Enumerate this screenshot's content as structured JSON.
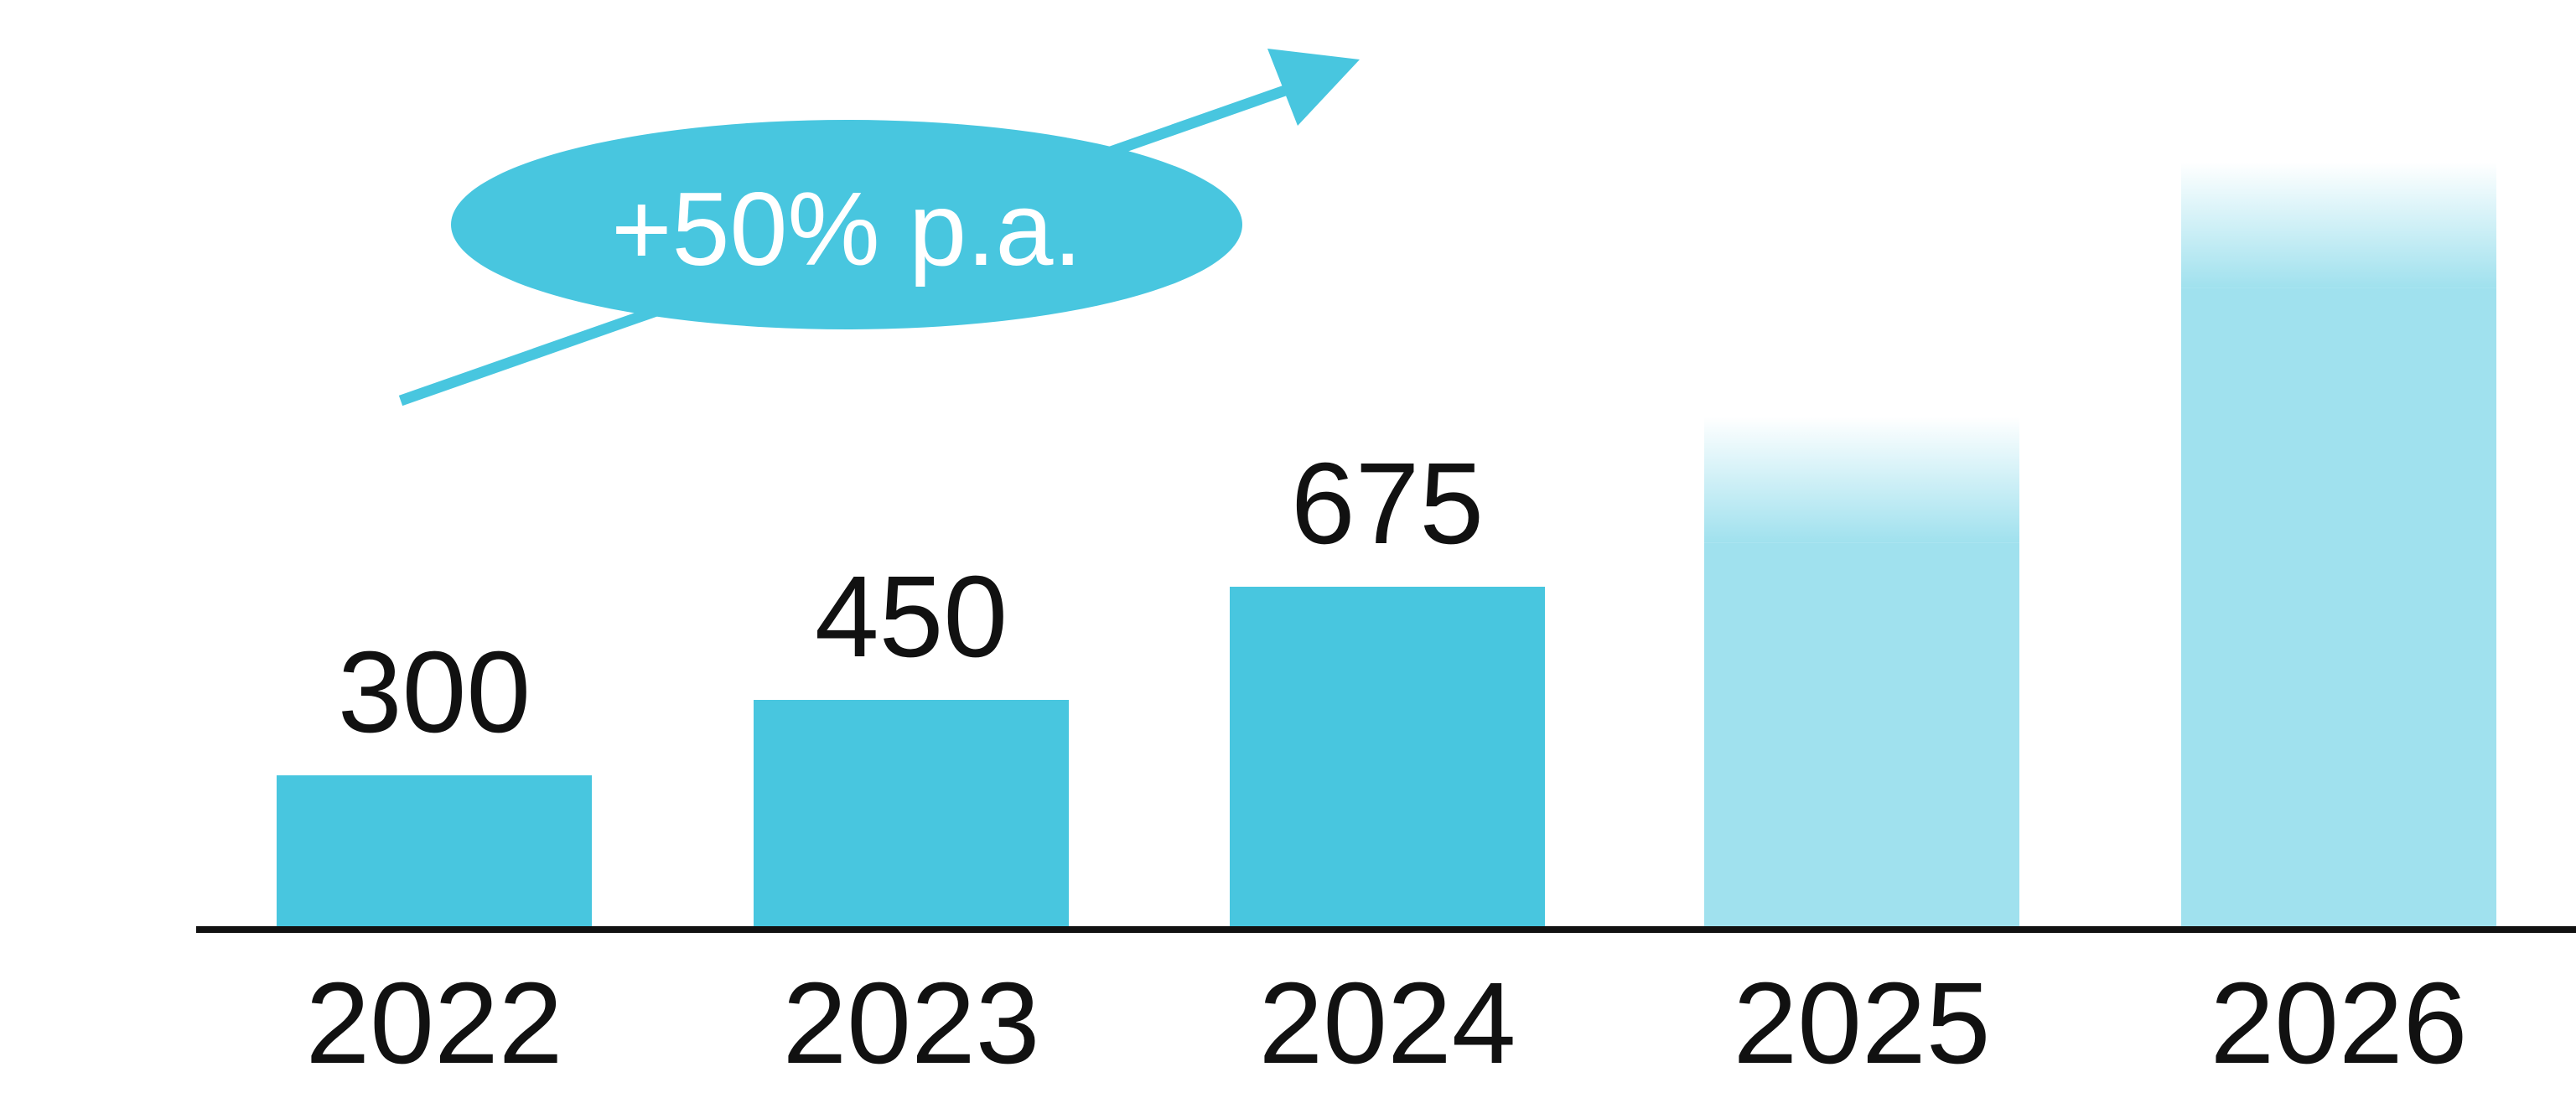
{
  "chart_data": {
    "type": "bar",
    "categories": [
      "2022",
      "2023",
      "2024",
      "2025",
      "2026"
    ],
    "values": [
      300,
      450,
      675,
      1013,
      1519
    ],
    "data_labels": [
      "300",
      "450",
      "675",
      "",
      ""
    ],
    "projected": [
      false,
      false,
      false,
      true,
      true
    ],
    "ylim": [
      0,
      1519
    ],
    "grid": false,
    "annotation": {
      "text": "+50% p.a."
    }
  },
  "colors": {
    "actual_bar": "#48c6df",
    "projected_bar": "#a0e1ee",
    "annotation": "#48c6df",
    "axis": "#111111"
  }
}
